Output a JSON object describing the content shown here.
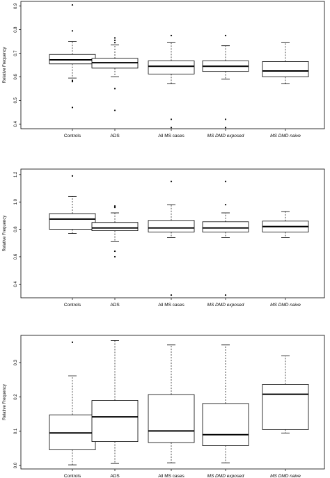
{
  "chart_data": [
    {
      "type": "boxplot",
      "ylabel": "Relative Frequency",
      "categories": [
        "Controls",
        "ADS",
        "All MS cases",
        "MS DMD exposed",
        "MS DMD naive"
      ],
      "italic_categories": [
        false,
        false,
        false,
        true,
        true
      ],
      "ylim": [
        0.38,
        0.92
      ],
      "yticks": [
        0.4,
        0.5,
        0.6,
        0.7,
        0.8,
        0.9
      ],
      "boxes": [
        {
          "whisker_low": 0.595,
          "q1": 0.655,
          "median": 0.672,
          "q3": 0.695,
          "whisker_high": 0.75,
          "outliers": [
            0.905,
            0.795,
            0.585,
            0.58,
            0.47
          ]
        },
        {
          "whisker_low": 0.6,
          "q1": 0.637,
          "median": 0.66,
          "q3": 0.678,
          "whisker_high": 0.735,
          "outliers": [
            0.765,
            0.755,
            0.745,
            0.55,
            0.458
          ]
        },
        {
          "whisker_low": 0.57,
          "q1": 0.612,
          "median": 0.645,
          "q3": 0.668,
          "whisker_high": 0.745,
          "outliers": [
            0.775,
            0.42,
            0.385
          ]
        },
        {
          "whisker_low": 0.59,
          "q1": 0.623,
          "median": 0.645,
          "q3": 0.668,
          "whisker_high": 0.732,
          "outliers": [
            0.775,
            0.42,
            0.385
          ]
        },
        {
          "whisker_low": 0.57,
          "q1": 0.6,
          "median": 0.625,
          "q3": 0.665,
          "whisker_high": 0.745,
          "outliers": []
        }
      ]
    },
    {
      "type": "boxplot",
      "ylabel": "Relative Frequency",
      "categories": [
        "Controls",
        "ADS",
        "All MS cases",
        "MS DMD exposed",
        "MS DMD naive"
      ],
      "italic_categories": [
        false,
        false,
        false,
        true,
        true
      ],
      "ylim": [
        0.3,
        1.24
      ],
      "yticks": [
        0.4,
        0.6,
        0.8,
        1.0,
        1.2
      ],
      "boxes": [
        {
          "whisker_low": 0.77,
          "q1": 0.8,
          "median": 0.875,
          "q3": 0.915,
          "whisker_high": 1.04,
          "outliers": [
            1.19
          ]
        },
        {
          "whisker_low": 0.71,
          "q1": 0.79,
          "median": 0.81,
          "q3": 0.85,
          "whisker_high": 0.92,
          "outliers": [
            0.97,
            0.96,
            0.64,
            0.6
          ]
        },
        {
          "whisker_low": 0.74,
          "q1": 0.78,
          "median": 0.81,
          "q3": 0.865,
          "whisker_high": 0.98,
          "outliers": [
            1.15,
            0.32
          ]
        },
        {
          "whisker_low": 0.74,
          "q1": 0.78,
          "median": 0.81,
          "q3": 0.855,
          "whisker_high": 0.92,
          "outliers": [
            1.15,
            0.98,
            0.32
          ]
        },
        {
          "whisker_low": 0.74,
          "q1": 0.78,
          "median": 0.82,
          "q3": 0.86,
          "whisker_high": 0.93,
          "outliers": []
        }
      ]
    },
    {
      "type": "boxplot",
      "ylabel": "Relative Frequency",
      "categories": [
        "Controls",
        "ADS",
        "All MS cases",
        "MS DMD exposed",
        "MS DMD naive"
      ],
      "italic_categories": [
        false,
        false,
        false,
        true,
        true
      ],
      "ylim": [
        -0.01,
        0.38
      ],
      "yticks": [
        0.0,
        0.1,
        0.2,
        0.3
      ],
      "boxes": [
        {
          "whisker_low": 0.002,
          "q1": 0.046,
          "median": 0.095,
          "q3": 0.148,
          "whisker_high": 0.262,
          "outliers": [
            0.36
          ]
        },
        {
          "whisker_low": 0.006,
          "q1": 0.07,
          "median": 0.142,
          "q3": 0.19,
          "whisker_high": 0.365,
          "outliers": []
        },
        {
          "whisker_low": 0.008,
          "q1": 0.067,
          "median": 0.101,
          "q3": 0.207,
          "whisker_high": 0.352,
          "outliers": []
        },
        {
          "whisker_low": 0.008,
          "q1": 0.058,
          "median": 0.09,
          "q3": 0.181,
          "whisker_high": 0.352,
          "outliers": []
        },
        {
          "whisker_low": 0.095,
          "q1": 0.105,
          "median": 0.208,
          "q3": 0.237,
          "whisker_high": 0.32,
          "outliers": []
        }
      ]
    }
  ]
}
